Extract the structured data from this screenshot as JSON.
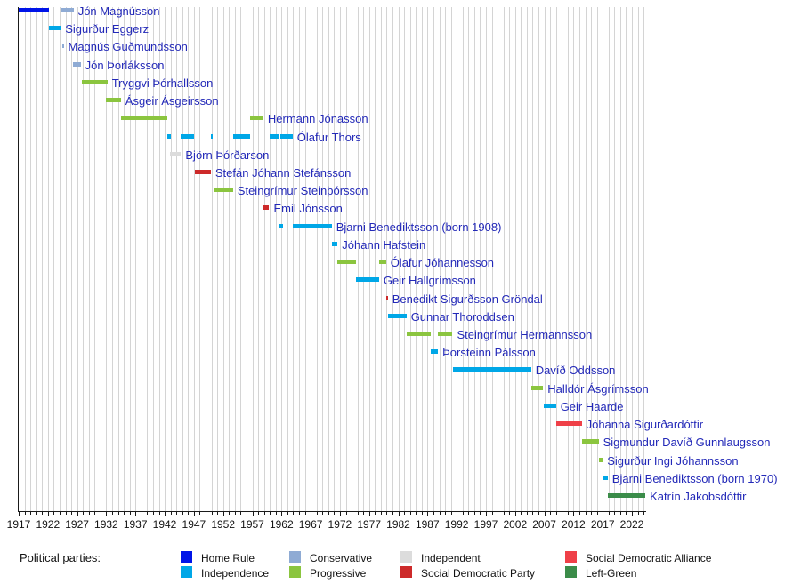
{
  "chart_data": {
    "type": "bar",
    "subtype": "timeline-gantt",
    "title": "",
    "xlabel": "",
    "ylabel": "",
    "x_axis": {
      "min_year": 1917,
      "max_year": 2024.3,
      "major_tick_interval": 5,
      "minor_tick_interval": 1,
      "grid": "on",
      "tick_labels": [
        "1917",
        "1922",
        "1927",
        "1932",
        "1937",
        "1942",
        "1947",
        "1952",
        "1957",
        "1962",
        "1967",
        "1972",
        "1977",
        "1982",
        "1987",
        "1992",
        "1997",
        "2002",
        "2007",
        "2012",
        "2017",
        "2022"
      ]
    },
    "legend": {
      "title": "Political parties:",
      "position": "bottom",
      "columns": [
        [
          "home_rule",
          "independence"
        ],
        [
          "conservative",
          "progressive"
        ],
        [
          "independent",
          "sdp"
        ],
        [
          "sda",
          "left_green"
        ]
      ]
    },
    "parties": {
      "home_rule": {
        "label": "Home Rule",
        "color": "#0014e8"
      },
      "independence": {
        "label": "Independence",
        "color": "#00a7e7"
      },
      "conservative": {
        "label": "Conservative",
        "color": "#8fabd4"
      },
      "progressive": {
        "label": "Progressive",
        "color": "#8bc53f"
      },
      "independent": {
        "label": "Independent",
        "color": "#dcdcdc"
      },
      "sdp": {
        "label": "Social Democratic Party",
        "color": "#cd2a2a"
      },
      "sda": {
        "label": "Social Democratic Alliance",
        "color": "#ef4048"
      },
      "left_green": {
        "label": "Left-Green",
        "color": "#3b8c49"
      }
    },
    "people": [
      {
        "name": "Jón Magnússon",
        "segments": [
          {
            "p": "home_rule",
            "s": 1917.0,
            "e": 1922.2
          },
          {
            "p": "conservative",
            "s": 1924.2,
            "e": 1926.4
          }
        ]
      },
      {
        "name": "Sigurður Eggerz",
        "segments": [
          {
            "p": "independence",
            "s": 1922.2,
            "e": 1924.2
          }
        ]
      },
      {
        "name": "Magnús Guðmundsson",
        "segments": [
          {
            "p": "conservative",
            "s": 1924.4,
            "e": 1924.7
          }
        ]
      },
      {
        "name": "Jón Þorláksson",
        "segments": [
          {
            "p": "conservative",
            "s": 1926.3,
            "e": 1927.6
          }
        ]
      },
      {
        "name": "Tryggvi Þórhallsson",
        "segments": [
          {
            "p": "progressive",
            "s": 1927.8,
            "e": 1932.2
          }
        ]
      },
      {
        "name": "Ásgeir Ásgeirsson",
        "segments": [
          {
            "p": "progressive",
            "s": 1931.9,
            "e": 1934.5
          }
        ]
      },
      {
        "name": "Hermann Jónasson",
        "segments": [
          {
            "p": "progressive",
            "s": 1934.5,
            "e": 1942.4
          },
          {
            "p": "progressive",
            "s": 1956.6,
            "e": 1958.9
          }
        ]
      },
      {
        "name": "Ólafur Thors",
        "segments": [
          {
            "p": "independence",
            "s": 1942.4,
            "e": 1943.0
          },
          {
            "p": "independence",
            "s": 1944.8,
            "e": 1947.1
          },
          {
            "p": "independence",
            "s": 1949.9,
            "e": 1950.3
          },
          {
            "p": "independence",
            "s": 1953.7,
            "e": 1956.6
          },
          {
            "p": "independence",
            "s": 1959.9,
            "e": 1961.5
          },
          {
            "p": "independence",
            "s": 1961.8,
            "e": 1963.9
          }
        ]
      },
      {
        "name": "Björn Þórðarson",
        "segments": [
          {
            "p": "independent",
            "s": 1942.95,
            "e": 1944.8
          }
        ]
      },
      {
        "name": "Stefán Jóhann Stefánsson",
        "segments": [
          {
            "p": "sdp",
            "s": 1947.1,
            "e": 1949.9
          }
        ]
      },
      {
        "name": "Steingrímur Steinþórsson",
        "segments": [
          {
            "p": "progressive",
            "s": 1950.3,
            "e": 1953.7
          }
        ]
      },
      {
        "name": "Emil Jónsson",
        "segments": [
          {
            "p": "sdp",
            "s": 1958.95,
            "e": 1959.9
          }
        ]
      },
      {
        "name": "Bjarni Benediktsson (born 1908)",
        "segments": [
          {
            "p": "independence",
            "s": 1961.5,
            "e": 1962.2
          },
          {
            "p": "independence",
            "s": 1963.9,
            "e": 1970.6
          }
        ]
      },
      {
        "name": "Jóhann Hafstein",
        "segments": [
          {
            "p": "independence",
            "s": 1970.6,
            "e": 1971.6
          }
        ]
      },
      {
        "name": "Ólafur Jóhannesson",
        "segments": [
          {
            "p": "progressive",
            "s": 1971.6,
            "e": 1974.7
          },
          {
            "p": "progressive",
            "s": 1978.7,
            "e": 1979.9
          }
        ]
      },
      {
        "name": "Geir Hallgrímsson",
        "segments": [
          {
            "p": "independence",
            "s": 1974.7,
            "e": 1978.7
          }
        ]
      },
      {
        "name": "Benedikt Sigurðsson Gröndal",
        "segments": [
          {
            "p": "sdp",
            "s": 1979.9,
            "e": 1980.2
          }
        ]
      },
      {
        "name": "Gunnar Thoroddsen",
        "segments": [
          {
            "p": "independence",
            "s": 1980.2,
            "e": 1983.4
          }
        ]
      },
      {
        "name": "Steingrímur Hermannsson",
        "segments": [
          {
            "p": "progressive",
            "s": 1983.4,
            "e": 1987.5
          },
          {
            "p": "progressive",
            "s": 1988.8,
            "e": 1991.3
          }
        ]
      },
      {
        "name": "Þorsteinn Pálsson",
        "segments": [
          {
            "p": "independence",
            "s": 1987.5,
            "e": 1988.8
          }
        ]
      },
      {
        "name": "Davíð Oddsson",
        "segments": [
          {
            "p": "independence",
            "s": 1991.3,
            "e": 2004.75
          }
        ]
      },
      {
        "name": "Halldór Ásgrímsson",
        "segments": [
          {
            "p": "progressive",
            "s": 2004.75,
            "e": 2006.8
          }
        ]
      },
      {
        "name": "Geir Haarde",
        "segments": [
          {
            "p": "independence",
            "s": 2006.95,
            "e": 2009.0
          }
        ]
      },
      {
        "name": "Jóhanna Sigurðardóttir",
        "segments": [
          {
            "p": "sda",
            "s": 2009.0,
            "e": 2013.4
          }
        ]
      },
      {
        "name": "Sigmundur Davíð Gunnlaugsson",
        "segments": [
          {
            "p": "progressive",
            "s": 2013.4,
            "e": 2016.3
          }
        ]
      },
      {
        "name": "Sigurður Ingi Jóhannsson",
        "segments": [
          {
            "p": "progressive",
            "s": 2016.3,
            "e": 2017.0
          }
        ]
      },
      {
        "name": "Bjarni Benediktsson (born 1970)",
        "segments": [
          {
            "p": "independence",
            "s": 2017.1,
            "e": 2017.85
          }
        ]
      },
      {
        "name": "Katrín Jakobsdóttir",
        "segments": [
          {
            "p": "left_green",
            "s": 2017.9,
            "e": 2024.3
          }
        ]
      }
    ]
  }
}
